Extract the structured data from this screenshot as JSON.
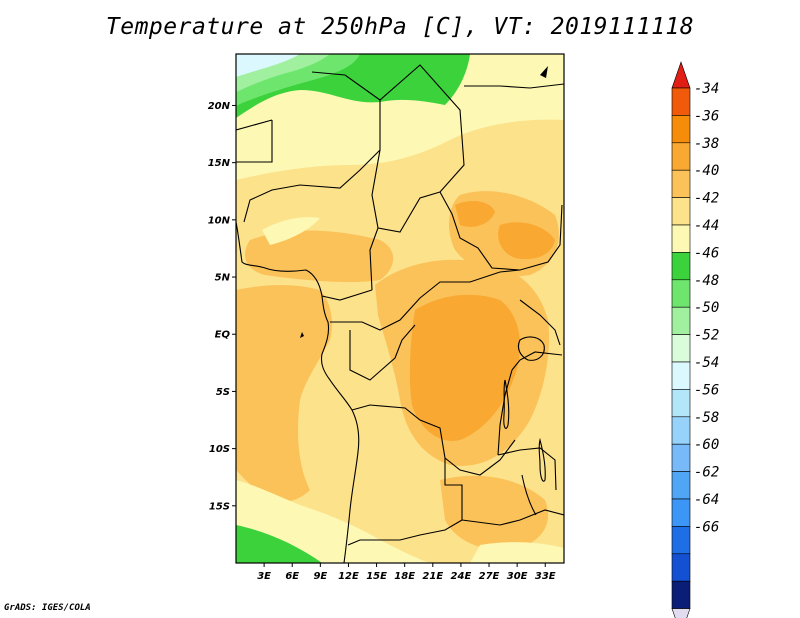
{
  "title": "Temperature at 250hPa [C], VT: 2019111118",
  "credit": "GrADS: IGES/COLA",
  "map": {
    "lon_range": [
      0,
      35
    ],
    "lat_range": [
      -20,
      24.5
    ],
    "lat_ticks": [
      {
        "value": 20,
        "label": "20N"
      },
      {
        "value": 15,
        "label": "15N"
      },
      {
        "value": 10,
        "label": "10N"
      },
      {
        "value": 5,
        "label": "5N"
      },
      {
        "value": 0,
        "label": "EQ"
      },
      {
        "value": -5,
        "label": "5S"
      },
      {
        "value": -10,
        "label": "10S"
      },
      {
        "value": -15,
        "label": "15S"
      }
    ],
    "lon_ticks": [
      {
        "value": 3,
        "label": "3E"
      },
      {
        "value": 6,
        "label": "6E"
      },
      {
        "value": 9,
        "label": "9E"
      },
      {
        "value": 12,
        "label": "12E"
      },
      {
        "value": 15,
        "label": "15E"
      },
      {
        "value": 18,
        "label": "18E"
      },
      {
        "value": 21,
        "label": "21E"
      },
      {
        "value": 24,
        "label": "24E"
      },
      {
        "value": 27,
        "label": "27E"
      },
      {
        "value": 30,
        "label": "30E"
      },
      {
        "value": 33,
        "label": "33E"
      }
    ]
  },
  "colorbar": {
    "bins": [
      {
        "label": "-34",
        "color": "#f05a0a"
      },
      {
        "label": "-36",
        "color": "#f58c0a"
      },
      {
        "label": "-38",
        "color": "#f9a832"
      },
      {
        "label": "-40",
        "color": "#fbc25a"
      },
      {
        "label": "-42",
        "color": "#fde28c"
      },
      {
        "label": "-44",
        "color": "#fdf8b4"
      },
      {
        "label": "-46",
        "color": "#3cd23c"
      },
      {
        "label": "-48",
        "color": "#6ee66e"
      },
      {
        "label": "-50",
        "color": "#a0f0a0"
      },
      {
        "label": "-52",
        "color": "#dafcda"
      },
      {
        "label": "-54",
        "color": "#dcf8ff"
      },
      {
        "label": "-56",
        "color": "#b4e6fa"
      },
      {
        "label": "-58",
        "color": "#96d2fa"
      },
      {
        "label": "-60",
        "color": "#78b9fa"
      },
      {
        "label": "-62",
        "color": "#50a5f5"
      },
      {
        "label": "-64",
        "color": "#3c96f5"
      },
      {
        "label": "-66",
        "color": "#1e6ee6"
      }
    ],
    "top_triangle_color": "#e11e14",
    "extra_bins": [
      "#1450d2",
      "#0a1e78"
    ],
    "bottom_triangle_color": "#e1dcf0"
  },
  "colors": {
    "base_field": "#fde28c",
    "warm_field": "#fbc25a",
    "warmer_field": "#f9a832",
    "cool_field": "#fdf8b4",
    "green_field": "#3cd23c",
    "light_green_field": "#6ee66e",
    "pale_green_field": "#a0f0a0",
    "ice_field": "#dcf8ff"
  }
}
